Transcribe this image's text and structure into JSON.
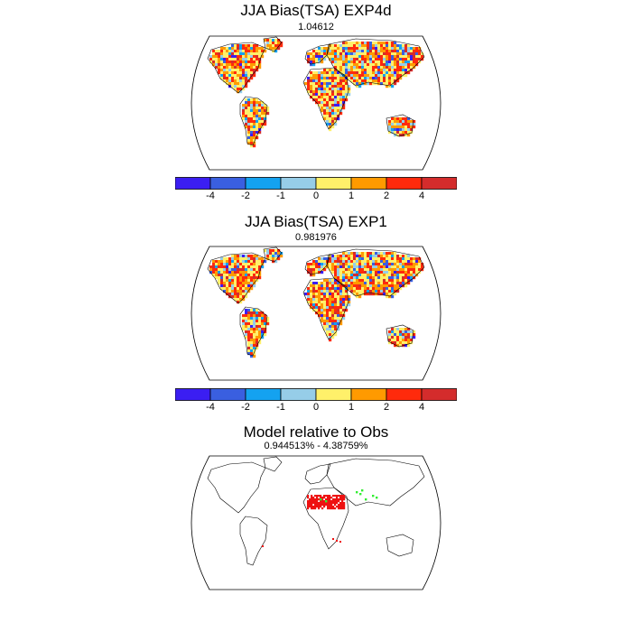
{
  "panels": [
    {
      "title": "JJA Bias(TSA) EXP4d",
      "subtitle": "1.04612"
    },
    {
      "title": "JJA Bias(TSA) EXP1",
      "subtitle": "0.981976"
    },
    {
      "title": "Model relative to Obs",
      "subtitle": "0.944513% - 4.38759%"
    }
  ],
  "colorbar": {
    "colors": [
      "#3b1ef2",
      "#3a5fe0",
      "#14a2f0",
      "#96cde8",
      "#fff06a",
      "#ff9a00",
      "#ff2a0c",
      "#d42c2c"
    ],
    "tick_labels": [
      "-4",
      "-2",
      "-1",
      "0",
      "1",
      "2",
      "4"
    ]
  },
  "legend_colors": {
    "model_higher": "#ee1111",
    "model_lower": "#33ee33"
  }
}
